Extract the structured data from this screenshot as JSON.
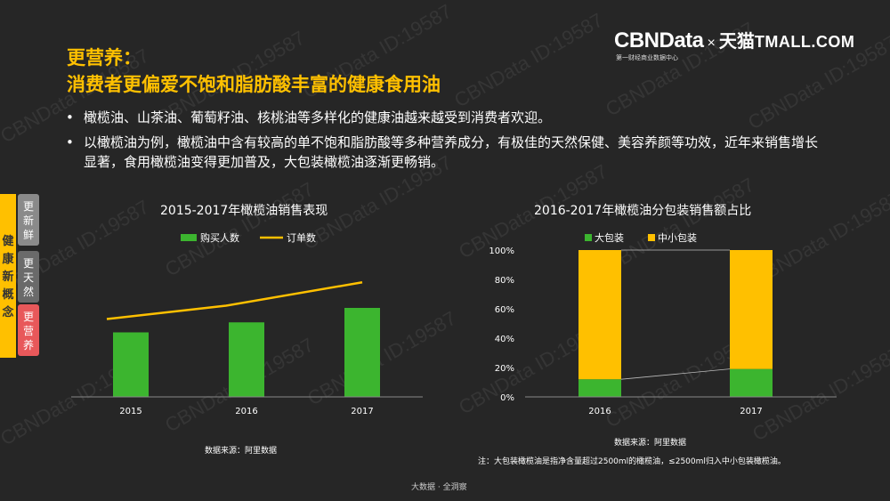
{
  "logo": {
    "brand": "CBNData",
    "tagline": "第一财经商业数据中心",
    "times": "×",
    "partner_cn": "天猫",
    "partner_en": "TMALL.COM"
  },
  "heading": {
    "line1": "更营养：",
    "line2": "消费者更偏爱不饱和脂肪酸丰富的健康食用油"
  },
  "bullets": [
    "橄榄油、山茶油、葡萄籽油、核桃油等多样化的健康油越来越受到消费者欢迎。",
    "以橄榄油为例，橄榄油中含有较高的单不饱和脂肪酸等多种营养成分，有极佳的天然保健、美容养颜等功效，近年来销售增长显著，食用橄榄油变得更加普及，大包装橄榄油逐渐更畅销。"
  ],
  "bullet_mark": "•",
  "side": {
    "main": "健康新概念",
    "tabs": [
      "更新鲜",
      "更天然",
      "更营养"
    ]
  },
  "chart_data": [
    {
      "type": "bar",
      "title": "2015-2017年橄榄油销售表现",
      "categories": [
        "2015",
        "2016",
        "2017"
      ],
      "series": [
        {
          "name": "购买人数",
          "type": "bar",
          "values": [
            58,
            67,
            80
          ],
          "color": "#3cb52f"
        },
        {
          "name": "订单数",
          "type": "line",
          "values": [
            70,
            82,
            103
          ],
          "color": "#ffc000"
        }
      ],
      "ylim": [
        0,
        120
      ],
      "legend": "top",
      "grid": false,
      "source": "数据来源：阿里数据"
    },
    {
      "type": "bar",
      "stacked": true,
      "title": "2016-2017年橄榄油分包装销售额占比",
      "categories": [
        "2016",
        "2017"
      ],
      "series": [
        {
          "name": "大包装",
          "values": [
            12,
            19
          ],
          "color": "#3cb52f"
        },
        {
          "name": "中小包装",
          "values": [
            88,
            81
          ],
          "color": "#ffc000"
        }
      ],
      "ylim": [
        0,
        100
      ],
      "yticks": [
        "0%",
        "20%",
        "40%",
        "60%",
        "80%",
        "100%"
      ],
      "legend": "top",
      "grid": false,
      "source": "数据来源：阿里数据"
    }
  ],
  "note": "注：大包装橄榄油是指净含量超过2500ml的橄榄油，≤2500ml归入中小包装橄榄油。",
  "footer": "大数据 · 全洞察",
  "watermark": "CBNData ID:19587",
  "colors": {
    "accent": "#ffc000",
    "green": "#3cb52f",
    "red": "#e8585a",
    "background": "#262626"
  }
}
